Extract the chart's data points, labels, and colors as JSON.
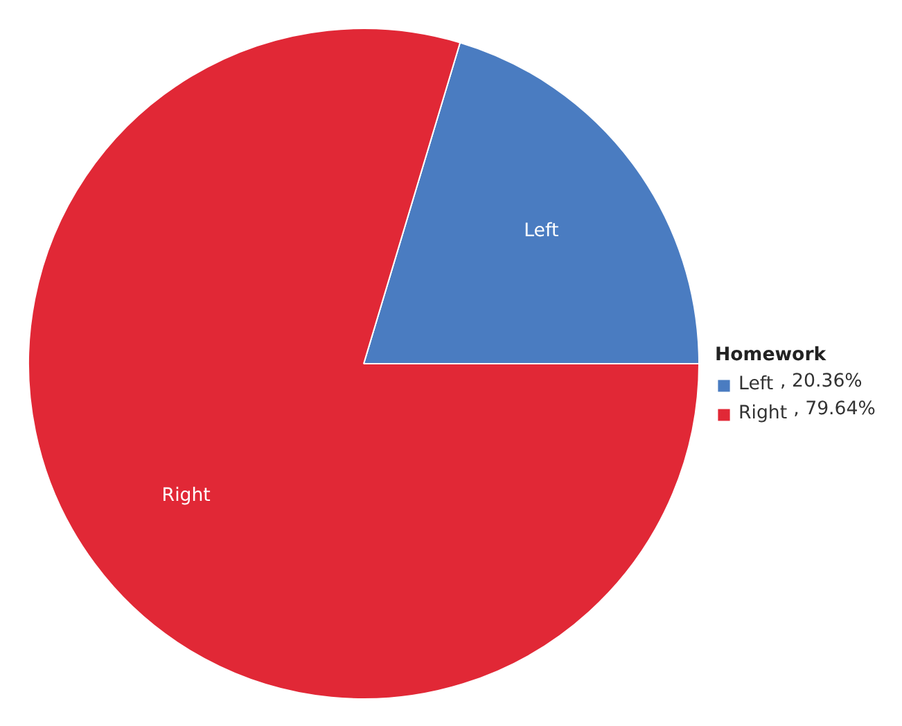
{
  "chart_data": {
    "type": "pie",
    "legend_title": "Homework",
    "categories": [
      "Left",
      "Right"
    ],
    "values": [
      20.36,
      79.64
    ],
    "value_labels": [
      ", 20.36%",
      ", 79.64%"
    ],
    "colors": [
      "#4a7cc1",
      "#e12836"
    ],
    "legend": "right"
  }
}
